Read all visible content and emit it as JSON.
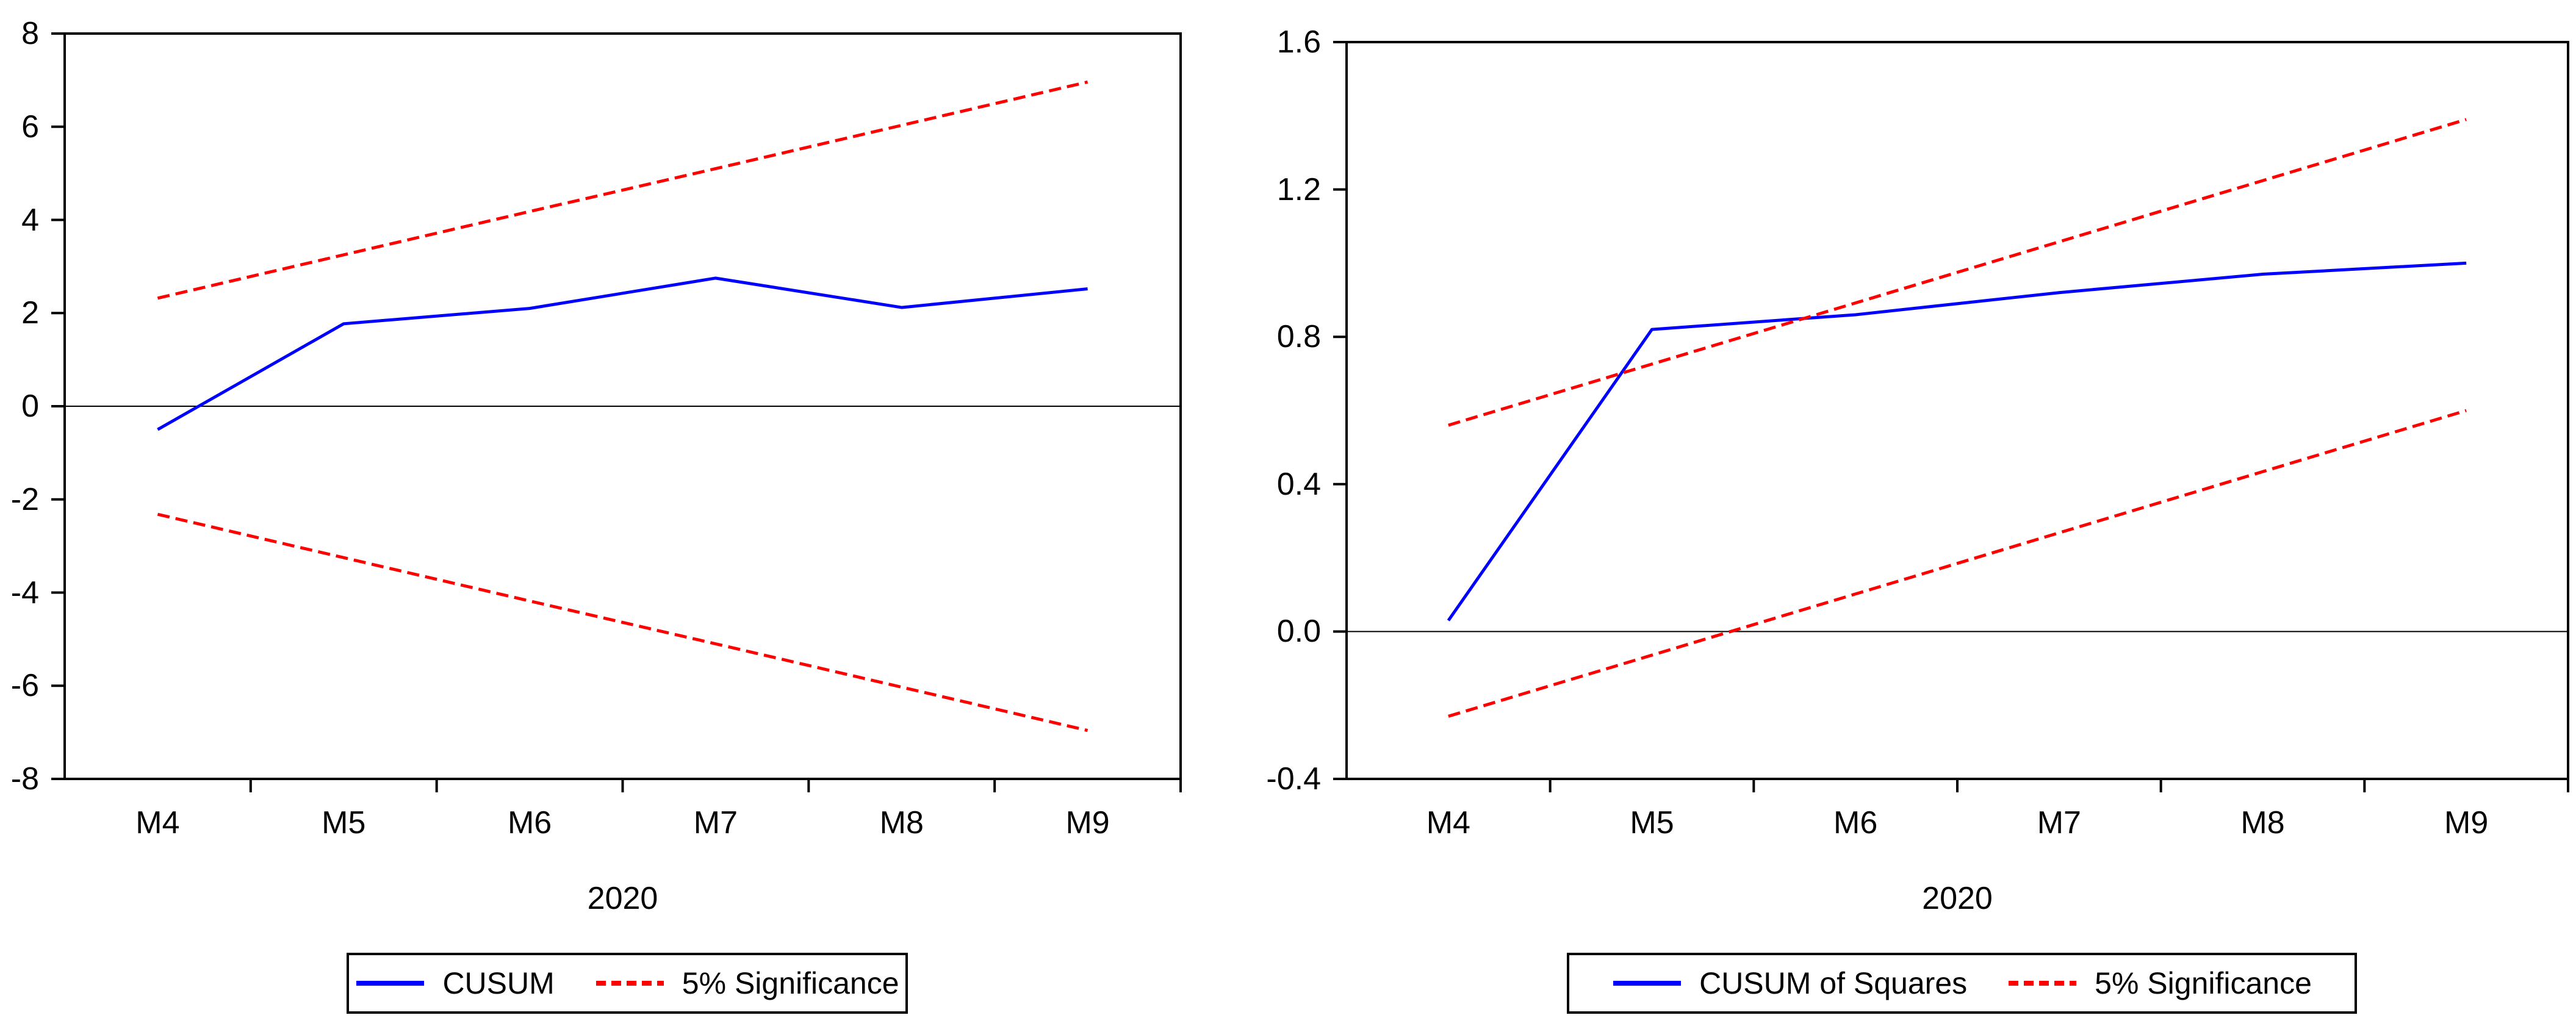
{
  "figure": {
    "background": "#ffffff",
    "axis_color": "#000000",
    "cusum_color": "#0000ff",
    "significance_color": "#ff0000"
  },
  "chart_data": [
    {
      "type": "line",
      "panel": "left",
      "title": "",
      "xlabel": "2020",
      "x": [
        "M4",
        "M5",
        "M6",
        "M7",
        "M8",
        "M9"
      ],
      "ylim": [
        -8,
        8
      ],
      "yticks": [
        {
          "label": "8",
          "v": 8
        },
        {
          "label": "6",
          "v": 6
        },
        {
          "label": "4",
          "v": 4
        },
        {
          "label": "2",
          "v": 2
        },
        {
          "label": "0",
          "v": 0
        },
        {
          "label": "-2",
          "v": -2
        },
        {
          "label": "-4",
          "v": -4
        },
        {
          "label": "-6",
          "v": -6
        },
        {
          "label": "-8",
          "v": -8
        }
      ],
      "zero_line": 0,
      "grid": false,
      "series": [
        {
          "name": "CUSUM",
          "color": "#0000ff",
          "dash": "solid",
          "values": [
            -0.5,
            1.77,
            2.1,
            2.75,
            2.12,
            2.52
          ]
        },
        {
          "name": "5% Significance (upper)",
          "color": "#ff0000",
          "dash": "dashed",
          "values": [
            2.32,
            3.25,
            4.18,
            5.1,
            6.03,
            6.96
          ]
        },
        {
          "name": "5% Significance (lower)",
          "color": "#ff0000",
          "dash": "dashed",
          "values": [
            -2.32,
            -3.25,
            -4.18,
            -5.1,
            -6.03,
            -6.96
          ]
        }
      ],
      "legend": {
        "position": "bottom",
        "items": [
          {
            "label": "CUSUM",
            "color": "#0000ff",
            "dash": "solid"
          },
          {
            "label": "5% Significance",
            "color": "#ff0000",
            "dash": "dashed"
          }
        ]
      }
    },
    {
      "type": "line",
      "panel": "right",
      "title": "",
      "xlabel": "2020",
      "x": [
        "M4",
        "M5",
        "M6",
        "M7",
        "M8",
        "M9"
      ],
      "ylim": [
        -0.4,
        1.6
      ],
      "yticks": [
        {
          "label": "1.6",
          "v": 1.6
        },
        {
          "label": "1.2",
          "v": 1.2
        },
        {
          "label": "0.8",
          "v": 0.8
        },
        {
          "label": "0.4",
          "v": 0.4
        },
        {
          "label": "0.0",
          "v": 0
        },
        {
          "label": "-0.4",
          "v": -0.4
        }
      ],
      "zero_line": 0,
      "grid": false,
      "series": [
        {
          "name": "CUSUM of Squares",
          "color": "#0000ff",
          "dash": "solid",
          "values": [
            0.03,
            0.82,
            0.86,
            0.92,
            0.97,
            1.0
          ]
        },
        {
          "name": "5% Significance (upper)",
          "color": "#ff0000",
          "dash": "dashed",
          "values": [
            0.56,
            0.726,
            0.892,
            1.058,
            1.224,
            1.39
          ]
        },
        {
          "name": "5% Significance (lower)",
          "color": "#ff0000",
          "dash": "dashed",
          "values": [
            -0.23,
            -0.064,
            0.102,
            0.268,
            0.434,
            0.6
          ]
        }
      ],
      "legend": {
        "position": "bottom",
        "items": [
          {
            "label": "CUSUM of Squares",
            "color": "#0000ff",
            "dash": "solid"
          },
          {
            "label": "5% Significance",
            "color": "#ff0000",
            "dash": "dashed"
          }
        ]
      }
    }
  ]
}
